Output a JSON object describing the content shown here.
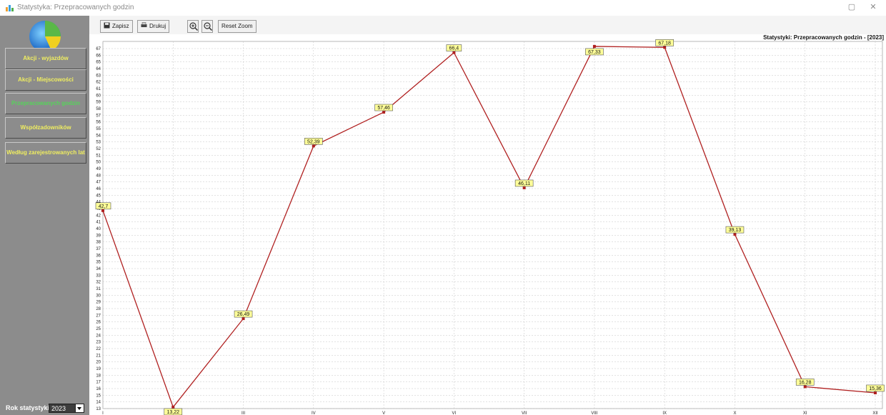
{
  "window": {
    "title": "Statystyka: Przepracowanych godzin",
    "minimize": "—",
    "restore": "▢",
    "close": "✕"
  },
  "sidebar": {
    "items": [
      {
        "label": "Akcji - wyjazdów",
        "active": false
      },
      {
        "label": "Akcji - Miejscowości",
        "active": false
      },
      {
        "label": "Przepracowanych godzin",
        "active": true
      },
      {
        "label": "Współzadowników",
        "active": false
      },
      {
        "label": "Według zarejestrowanych lat",
        "active": false
      }
    ],
    "year_label": "Rok statystyki",
    "year_value": "2023"
  },
  "toolbar": {
    "save": "Zapisz",
    "print": "Drukuj",
    "reset_zoom": "Reset Zoom"
  },
  "colors": {
    "sidebar": "#8c8c8c",
    "nav_text": "#f0ee60",
    "nav_active": "#56d45a",
    "line": "#b02020",
    "label_bg": "#ffff99"
  },
  "chart_data": {
    "type": "line",
    "title": "Statystyki: Przepracowanych godzin - [2023]",
    "categories": [
      "I",
      "II",
      "III",
      "IV",
      "V",
      "VI",
      "VII",
      "VIII",
      "IX",
      "X",
      "XI",
      "XII"
    ],
    "series": [
      {
        "values": [
          42.7,
          13.22,
          26.49,
          52.39,
          57.46,
          66.4,
          46.11,
          67.33,
          67.18,
          39.13,
          16.28,
          15.36
        ],
        "labels": [
          "42,7",
          "13,22",
          "26,49",
          "52,39",
          "57,46",
          "66,4",
          "46,11",
          "67,33",
          "67,18",
          "39,13",
          "16,28",
          "15,36"
        ]
      }
    ],
    "ylim": [
      13,
      67
    ],
    "grid": true,
    "legend": "none"
  }
}
